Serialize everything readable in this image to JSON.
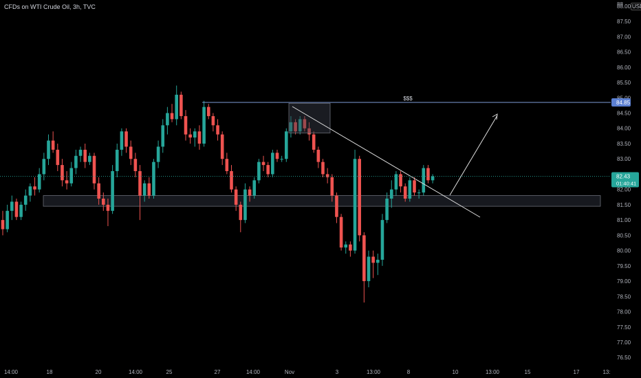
{
  "header": {
    "symbol_title": "CFDs on WTI Crude Oil, 3h, TVC",
    "currency": "USD"
  },
  "colors": {
    "background": "#000000",
    "up": "#26a69a",
    "down": "#ef5350",
    "resistance_line": "#7e9bd8",
    "price_badge": "#26a69a",
    "level_badge": "#5b7fd1"
  },
  "chart_data": {
    "type": "candlestick",
    "symbol": "CFDs on WTI Crude Oil",
    "interval": "3h",
    "source": "TVC",
    "currency": "USD",
    "ylim": [
      76.1,
      88.2
    ],
    "y_ticks": [
      "76.50",
      "77.00",
      "77.50",
      "78.00",
      "78.50",
      "79.00",
      "79.50",
      "80.00",
      "80.50",
      "81.00",
      "81.50",
      "82.00",
      "82.50",
      "83.00",
      "83.50",
      "84.00",
      "84.50",
      "85.00",
      "85.50",
      "86.00",
      "86.50",
      "87.00",
      "87.50",
      "88.00"
    ],
    "y_top_partial_label": "88",
    "x_ticks": [
      "14:00",
      "18",
      "20",
      "14:00",
      "25",
      "27",
      "14:00",
      "Nov",
      "3",
      "13:00",
      "8",
      "10",
      "13:00",
      "15",
      "17",
      "13:"
    ],
    "candles": [
      [
        81.0,
        81.3,
        80.5,
        80.7
      ],
      [
        80.7,
        81.5,
        80.6,
        81.3
      ],
      [
        81.3,
        81.8,
        81.0,
        81.6
      ],
      [
        81.6,
        81.7,
        81.0,
        81.1
      ],
      [
        81.1,
        81.6,
        81.0,
        81.5
      ],
      [
        81.5,
        82.0,
        81.3,
        81.8
      ],
      [
        81.8,
        82.2,
        81.6,
        82.1
      ],
      [
        82.1,
        82.4,
        81.8,
        82.0
      ],
      [
        82.0,
        82.7,
        81.9,
        82.5
      ],
      [
        82.5,
        83.2,
        82.3,
        83.0
      ],
      [
        83.0,
        83.8,
        82.8,
        83.6
      ],
      [
        83.6,
        83.9,
        83.2,
        83.3
      ],
      [
        83.3,
        83.5,
        82.6,
        82.8
      ],
      [
        82.8,
        83.0,
        82.1,
        82.3
      ],
      [
        82.3,
        82.6,
        82.0,
        82.2
      ],
      [
        82.2,
        82.9,
        82.1,
        82.7
      ],
      [
        82.7,
        83.3,
        82.5,
        83.1
      ],
      [
        83.1,
        83.4,
        82.9,
        83.3
      ],
      [
        83.3,
        83.5,
        82.7,
        82.9
      ],
      [
        82.9,
        83.2,
        82.8,
        83.1
      ],
      [
        83.1,
        83.2,
        82.0,
        82.2
      ],
      [
        82.2,
        82.4,
        81.5,
        81.7
      ],
      [
        81.7,
        81.9,
        81.3,
        81.5
      ],
      [
        81.5,
        81.7,
        80.8,
        81.3
      ],
      [
        81.3,
        82.8,
        81.2,
        82.6
      ],
      [
        82.6,
        83.5,
        82.4,
        83.3
      ],
      [
        83.3,
        84.0,
        83.1,
        83.9
      ],
      [
        83.9,
        84.0,
        83.2,
        83.4
      ],
      [
        83.4,
        83.6,
        82.8,
        83.0
      ],
      [
        83.0,
        83.2,
        82.4,
        82.6
      ],
      [
        82.6,
        82.8,
        81.0,
        81.8
      ],
      [
        81.8,
        82.3,
        81.6,
        82.2
      ],
      [
        82.2,
        82.4,
        81.7,
        81.8
      ],
      [
        81.8,
        83.0,
        81.7,
        82.9
      ],
      [
        82.9,
        83.6,
        82.7,
        83.4
      ],
      [
        83.4,
        84.3,
        83.2,
        84.1
      ],
      [
        84.1,
        84.7,
        83.8,
        84.5
      ],
      [
        84.5,
        84.8,
        84.2,
        84.3
      ],
      [
        84.3,
        85.4,
        84.1,
        85.1
      ],
      [
        85.1,
        85.2,
        84.3,
        84.4
      ],
      [
        84.4,
        84.6,
        83.6,
        83.8
      ],
      [
        83.8,
        84.0,
        83.5,
        83.7
      ],
      [
        83.7,
        84.0,
        83.4,
        83.9
      ],
      [
        83.9,
        84.1,
        83.3,
        83.5
      ],
      [
        83.5,
        84.9,
        83.4,
        84.7
      ],
      [
        84.7,
        84.8,
        84.3,
        84.4
      ],
      [
        84.4,
        84.5,
        83.9,
        84.1
      ],
      [
        84.1,
        84.3,
        83.6,
        83.8
      ],
      [
        83.8,
        83.9,
        82.8,
        83.0
      ],
      [
        83.0,
        83.2,
        82.5,
        82.6
      ],
      [
        82.6,
        82.8,
        81.9,
        82.0
      ],
      [
        82.0,
        82.1,
        81.3,
        81.5
      ],
      [
        81.5,
        81.6,
        80.6,
        81.0
      ],
      [
        81.0,
        82.2,
        80.9,
        82.0
      ],
      [
        82.0,
        82.1,
        81.6,
        81.8
      ],
      [
        81.8,
        82.4,
        81.7,
        82.3
      ],
      [
        82.3,
        83.0,
        82.2,
        82.9
      ],
      [
        82.9,
        83.1,
        82.6,
        82.8
      ],
      [
        82.8,
        82.9,
        82.4,
        82.5
      ],
      [
        82.5,
        83.3,
        82.4,
        83.2
      ],
      [
        83.2,
        83.3,
        82.9,
        83.0
      ],
      [
        83.0,
        83.1,
        82.9,
        83.0
      ],
      [
        83.0,
        84.0,
        82.9,
        83.9
      ],
      [
        83.9,
        84.4,
        83.7,
        84.2
      ],
      [
        84.2,
        84.3,
        83.8,
        83.9
      ],
      [
        83.9,
        84.4,
        83.8,
        84.3
      ],
      [
        84.3,
        84.4,
        83.9,
        84.0
      ],
      [
        84.0,
        84.2,
        83.6,
        83.8
      ],
      [
        83.8,
        83.9,
        83.2,
        83.3
      ],
      [
        83.3,
        83.4,
        82.7,
        82.9
      ],
      [
        82.9,
        83.0,
        82.4,
        82.5
      ],
      [
        82.5,
        82.7,
        82.2,
        82.4
      ],
      [
        82.4,
        82.5,
        81.6,
        81.8
      ],
      [
        81.8,
        81.9,
        80.9,
        81.1
      ],
      [
        81.1,
        81.2,
        80.0,
        80.1
      ],
      [
        80.1,
        80.3,
        79.9,
        80.2
      ],
      [
        80.2,
        80.3,
        79.8,
        80.0
      ],
      [
        80.0,
        83.3,
        79.9,
        83.0
      ],
      [
        83.0,
        83.1,
        80.3,
        80.5
      ],
      [
        80.5,
        80.6,
        78.3,
        79.0
      ],
      [
        79.0,
        80.0,
        78.8,
        79.8
      ],
      [
        79.8,
        80.0,
        79.1,
        79.6
      ],
      [
        79.6,
        79.9,
        79.2,
        79.7
      ],
      [
        79.7,
        81.2,
        79.5,
        81.0
      ],
      [
        81.0,
        81.9,
        80.9,
        81.7
      ],
      [
        81.7,
        82.3,
        81.4,
        82.0
      ],
      [
        82.0,
        82.6,
        81.8,
        82.5
      ],
      [
        82.5,
        82.6,
        81.9,
        82.1
      ],
      [
        82.1,
        82.2,
        81.6,
        81.7
      ],
      [
        81.7,
        82.4,
        81.6,
        82.3
      ],
      [
        82.3,
        82.4,
        81.8,
        81.9
      ],
      [
        81.9,
        82.0,
        81.7,
        81.9
      ],
      [
        81.9,
        82.8,
        81.8,
        82.7
      ],
      [
        82.7,
        82.8,
        82.2,
        82.3
      ],
      [
        82.3,
        82.5,
        82.2,
        82.43
      ]
    ],
    "support_zone": {
      "low": 81.45,
      "high": 81.8
    },
    "resistance_level": 84.85,
    "resistance_label": "$$$",
    "consolidation_box": {
      "low": 83.85,
      "high": 84.82
    },
    "current_price": "82.43",
    "countdown": "01:40:41",
    "level_price_label": "84.85"
  }
}
